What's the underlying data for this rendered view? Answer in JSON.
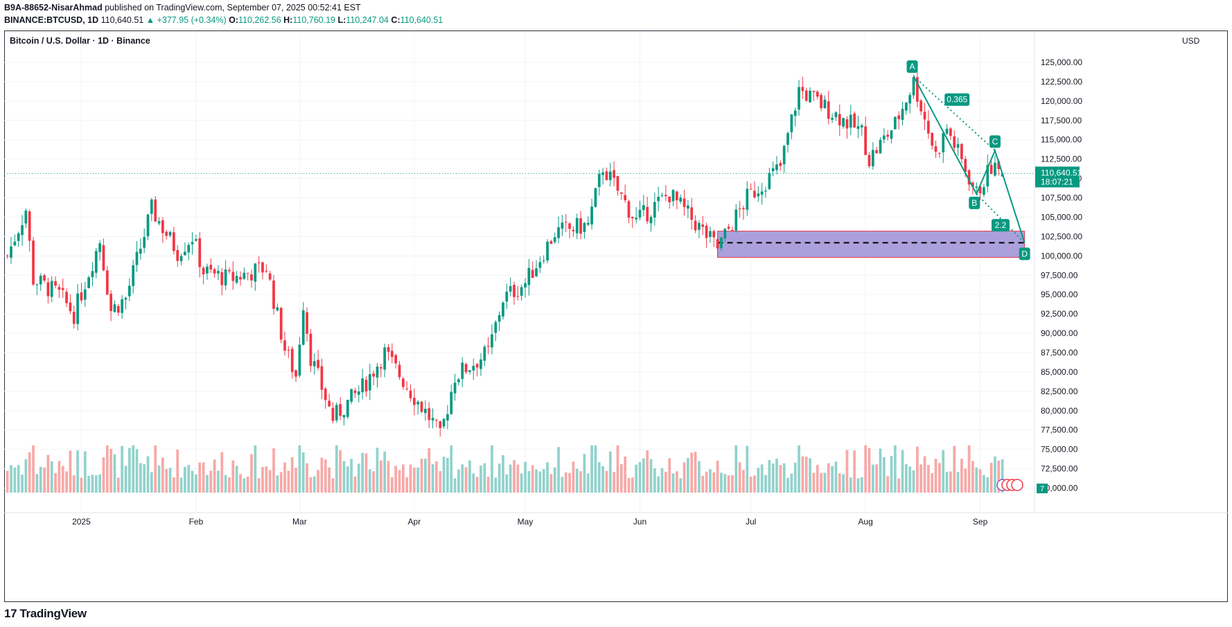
{
  "header": {
    "author": "B9A-88652-NisarAhmad",
    "published_text": "published on TradingView.com, September 07, 2025 00:52:41 EST",
    "symbol": "BINANCE:BTCUSD, 1D",
    "last": "110,640.51",
    "change": "▲ +377.95 (+0.34%)",
    "o_label": "O:",
    "o": "110,262.56",
    "h_label": "H:",
    "h": "110,760.19",
    "l_label": "L:",
    "l": "110,247.04",
    "c_label": "C:",
    "c": "110,640.51"
  },
  "chart_title": "Bitcoin / U.S. Dollar · 1D · Binance",
  "currency": "USD",
  "price_badge": {
    "price": "110,640.51",
    "countdown": "18:07:21"
  },
  "volume_badge": "7",
  "footer": {
    "logo": "TradingView",
    "mark": "17"
  },
  "pattern_labels": {
    "A": "A",
    "B": "B",
    "C": "C",
    "D": "D",
    "ratio1": "0.365",
    "ratio2": "2.2"
  },
  "colors": {
    "up": "#089981",
    "down": "#f23645",
    "zone": "#9c8fd6",
    "accent": "#089981"
  },
  "chart_data": {
    "type": "candlestick",
    "title": "Bitcoin / U.S. Dollar · 1D · Binance",
    "y_ticks": [
      125000,
      122500,
      120000,
      117500,
      115000,
      112500,
      110000,
      107500,
      105000,
      102500,
      100000,
      97500,
      95000,
      92500,
      90000,
      87500,
      85000,
      82500,
      80000,
      77500,
      75000,
      72500,
      70000
    ],
    "y_tick_labels": [
      "125,000.00",
      "122,500.00",
      "120,000.00",
      "117,500.00",
      "115,000.00",
      "112,500.00",
      "110,000.00",
      "107,500.00",
      "105,000.00",
      "102,500.00",
      "100,000.00",
      "97,500.00",
      "95,000.00",
      "92,500.00",
      "90,000.00",
      "87,500.00",
      "85,000.00",
      "82,500.00",
      "80,000.00",
      "77,500.00",
      "75,000.00",
      "72,500.00",
      "70,000.00"
    ],
    "x_labels": [
      "2025",
      "Feb",
      "Mar",
      "Apr",
      "May",
      "Jun",
      "Jul",
      "Aug",
      "Sep"
    ],
    "x_label_dates": [
      "2025-01-01",
      "2025-02-01",
      "2025-03-01",
      "2025-04-01",
      "2025-05-01",
      "2025-06-01",
      "2025-07-01",
      "2025-08-01",
      "2025-09-01"
    ],
    "start_date": "2024-12-12",
    "end_date": "2025-09-07",
    "ylim": [
      70000,
      126500
    ],
    "last_price": 110640.51,
    "waypoints": [
      [
        "2024-12-12",
        100000
      ],
      [
        "2024-12-17",
        106000
      ],
      [
        "2024-12-19",
        97000
      ],
      [
        "2024-12-26",
        95000
      ],
      [
        "2024-12-30",
        92500
      ],
      [
        "2025-01-06",
        102000
      ],
      [
        "2025-01-09",
        93000
      ],
      [
        "2025-01-13",
        94500
      ],
      [
        "2025-01-20",
        106000
      ],
      [
        "2025-01-27",
        100500
      ],
      [
        "2025-01-31",
        102500
      ],
      [
        "2025-02-03",
        98000
      ],
      [
        "2025-02-10",
        97000
      ],
      [
        "2025-02-20",
        98500
      ],
      [
        "2025-02-25",
        88000
      ],
      [
        "2025-02-28",
        84500
      ],
      [
        "2025-03-02",
        94000
      ],
      [
        "2025-03-04",
        87000
      ],
      [
        "2025-03-10",
        79000
      ],
      [
        "2025-03-18",
        83000
      ],
      [
        "2025-03-24",
        87500
      ],
      [
        "2025-03-31",
        82500
      ],
      [
        "2025-04-06",
        78500
      ],
      [
        "2025-04-08",
        76500
      ],
      [
        "2025-04-12",
        84500
      ],
      [
        "2025-04-21",
        87500
      ],
      [
        "2025-04-25",
        94500
      ],
      [
        "2025-05-01",
        96500
      ],
      [
        "2025-05-09",
        103000
      ],
      [
        "2025-05-18",
        104000
      ],
      [
        "2025-05-22",
        111500
      ],
      [
        "2025-05-31",
        104500
      ],
      [
        "2025-06-09",
        108000
      ],
      [
        "2025-06-22",
        101000
      ],
      [
        "2025-06-30",
        107500
      ],
      [
        "2025-07-09",
        111500
      ],
      [
        "2025-07-14",
        121500
      ],
      [
        "2025-07-31",
        116000
      ],
      [
        "2025-08-02",
        112500
      ],
      [
        "2025-08-09",
        117000
      ],
      [
        "2025-08-14",
        122500
      ],
      [
        "2025-08-20",
        113000
      ],
      [
        "2025-08-23",
        116500
      ],
      [
        "2025-08-31",
        108000
      ],
      [
        "2025-09-04",
        111500
      ],
      [
        "2025-09-07",
        110640
      ]
    ],
    "harmonic_pattern": {
      "points": [
        {
          "label": "A",
          "date": "2025-08-14",
          "price": 123200
        },
        {
          "label": "B",
          "date": "2025-08-31",
          "price": 108000
        },
        {
          "label": "C",
          "date": "2025-09-05",
          "price": 113600
        },
        {
          "label": "D",
          "date": "2025-09-13",
          "price": 101700
        }
      ],
      "ratios": [
        "0.365",
        "2.2"
      ]
    },
    "support_zone": {
      "from_date": "2025-06-22",
      "to_date": "2025-09-13",
      "top": 103200,
      "bottom": 99800,
      "mid": 101700
    }
  }
}
